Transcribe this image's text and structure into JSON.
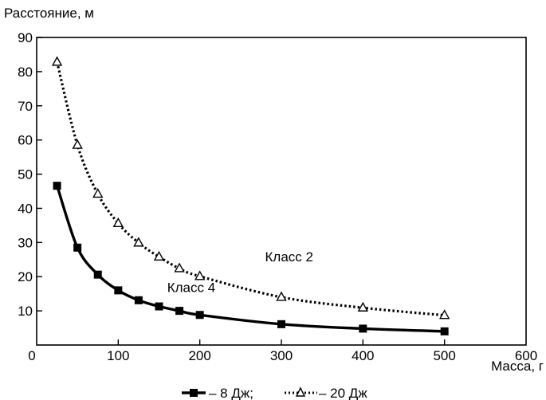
{
  "chart_data": {
    "type": "line",
    "ylabel": "Расстояние, м",
    "xlabel": "Масса, г",
    "xlim": [
      0,
      600
    ],
    "ylim": [
      0,
      90
    ],
    "xticks": [
      0,
      100,
      200,
      300,
      400,
      500,
      600
    ],
    "yticks": [
      10,
      20,
      30,
      40,
      50,
      60,
      70,
      80,
      90
    ],
    "xtick_labels": [
      "0",
      "100",
      "200",
      "300",
      "400",
      "500",
      "600"
    ],
    "ytick_labels": [
      "10",
      "20",
      "30",
      "40",
      "50",
      "60",
      "70",
      "80",
      "90"
    ],
    "grid": false,
    "legend_position": "bottom",
    "series": [
      {
        "name": "– 8 Дж;",
        "style": "solid",
        "marker": "square",
        "color": "#000000",
        "x": [
          25,
          50,
          75,
          100,
          125,
          150,
          175,
          200,
          300,
          400,
          500
        ],
        "y": [
          46.6,
          28.5,
          20.6,
          16.0,
          13.1,
          11.3,
          10.0,
          8.8,
          6.1,
          4.8,
          4.0
        ]
      },
      {
        "name": "– 20 Дж",
        "style": "dotted",
        "marker": "triangle",
        "color": "#000000",
        "x": [
          25,
          50,
          75,
          100,
          125,
          150,
          175,
          200,
          300,
          400,
          500
        ],
        "y": [
          82.8,
          58.5,
          44.2,
          35.6,
          29.9,
          25.8,
          22.4,
          20.1,
          14.0,
          10.9,
          8.7
        ]
      }
    ],
    "annotations": [
      {
        "text": "Класс 2",
        "x": 280,
        "y": 24.5
      },
      {
        "text": "Класс 4",
        "x": 160,
        "y": 15.5
      }
    ]
  }
}
